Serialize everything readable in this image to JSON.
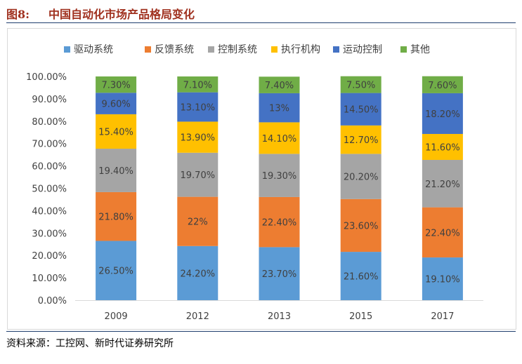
{
  "figure": {
    "number": "图8:",
    "title": "中国自动化市场产品格局变化",
    "source": "资料来源：工控网、新时代证券研究所"
  },
  "chart_data": {
    "type": "bar",
    "stacked": true,
    "title": "",
    "xlabel": "",
    "ylabel": "",
    "categories": [
      "2009",
      "2012",
      "2013",
      "2015",
      "2017"
    ],
    "ylim": [
      0,
      100
    ],
    "yticks": [
      "0.00%",
      "10.00%",
      "20.00%",
      "30.00%",
      "40.00%",
      "50.00%",
      "60.00%",
      "70.00%",
      "80.00%",
      "90.00%",
      "100.00%"
    ],
    "legend_position": "top",
    "grid": false,
    "series": [
      {
        "name": "驱动系统",
        "color": "#5b9bd5",
        "values": [
          26.5,
          24.2,
          23.7,
          21.6,
          19.1
        ],
        "labels": [
          "26.50%",
          "24.20%",
          "23.70%",
          "21.60%",
          "19.10%"
        ]
      },
      {
        "name": "反馈系统",
        "color": "#ed7d31",
        "values": [
          21.8,
          22,
          22.4,
          23.6,
          22.4
        ],
        "labels": [
          "21.80%",
          "22%",
          "22.40%",
          "23.60%",
          "22.40%"
        ]
      },
      {
        "name": "控制系统",
        "color": "#a5a5a5",
        "values": [
          19.4,
          19.7,
          19.3,
          20.2,
          21.2
        ],
        "labels": [
          "19.40%",
          "19.70%",
          "19.30%",
          "20.20%",
          "21.20%"
        ]
      },
      {
        "name": "执行机构",
        "color": "#ffc000",
        "values": [
          15.4,
          13.9,
          14.1,
          12.7,
          11.6
        ],
        "labels": [
          "15.40%",
          "13.90%",
          "14.10%",
          "12.70%",
          "11.60%"
        ]
      },
      {
        "name": "运动控制",
        "color": "#4472c4",
        "values": [
          9.6,
          13.1,
          13,
          14.5,
          18.2
        ],
        "labels": [
          "9.60%",
          "13.10%",
          "13%",
          "14.50%",
          "18.20%"
        ]
      },
      {
        "name": "其他",
        "color": "#70ad47",
        "values": [
          7.3,
          7.1,
          7.4,
          7.5,
          7.6
        ],
        "labels": [
          "7.30%",
          "7.10%",
          "7.40%",
          "7.50%",
          "7.60%"
        ]
      }
    ]
  }
}
